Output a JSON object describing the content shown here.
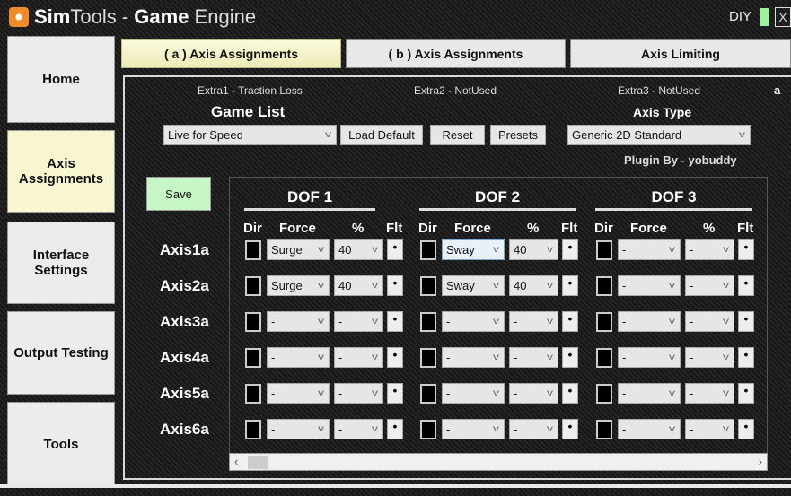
{
  "window": {
    "title_app": "Sim",
    "title_app2": "Tools",
    "title_sep": " - ",
    "title_bold": "Game",
    "title_rest": " Engine",
    "diy": "DIY",
    "close": "X"
  },
  "sidebar": {
    "items": [
      {
        "label": "Home"
      },
      {
        "label": "Axis Assignments",
        "active": true
      },
      {
        "label": "Interface Settings"
      },
      {
        "label": "Output Testing"
      },
      {
        "label": "Tools"
      }
    ]
  },
  "tabs": [
    {
      "label": "( a ) Axis Assignments",
      "active": true
    },
    {
      "label": "( b ) Axis Assignments"
    },
    {
      "label": "Axis Limiting"
    }
  ],
  "panel": {
    "extra1": "Extra1 - Traction Loss",
    "extra2": "Extra2 - NotUsed",
    "extra3": "Extra3 - NotUsed",
    "corner": "a",
    "game_list_label": "Game List",
    "game_selected": "Live for Speed",
    "load_default": "Load Default",
    "reset": "Reset",
    "presets": "Presets",
    "axis_type_label": "Axis Type",
    "axis_type_selected": "Generic 2D Standard",
    "plugin_by": "Plugin By - yobuddy",
    "save": "Save"
  },
  "grid": {
    "dofs": [
      "DOF 1",
      "DOF 2",
      "DOF 3"
    ],
    "columns": {
      "dir": "Dir",
      "force": "Force",
      "percent": "%",
      "flt": "Flt"
    },
    "flt_glyph": "•",
    "rows": [
      {
        "axis": "Axis1a",
        "cells": [
          {
            "force": "Surge",
            "percent": "40"
          },
          {
            "force": "Sway",
            "percent": "40",
            "focused": true
          },
          {
            "force": "-",
            "percent": "-"
          }
        ]
      },
      {
        "axis": "Axis2a",
        "cells": [
          {
            "force": "Surge",
            "percent": "40"
          },
          {
            "force": "Sway",
            "percent": "40"
          },
          {
            "force": "-",
            "percent": "-"
          }
        ]
      },
      {
        "axis": "Axis3a",
        "cells": [
          {
            "force": "-",
            "percent": "-"
          },
          {
            "force": "-",
            "percent": "-"
          },
          {
            "force": "-",
            "percent": "-"
          }
        ]
      },
      {
        "axis": "Axis4a",
        "cells": [
          {
            "force": "-",
            "percent": "-"
          },
          {
            "force": "-",
            "percent": "-"
          },
          {
            "force": "-",
            "percent": "-"
          }
        ]
      },
      {
        "axis": "Axis5a",
        "cells": [
          {
            "force": "-",
            "percent": "-"
          },
          {
            "force": "-",
            "percent": "-"
          },
          {
            "force": "-",
            "percent": "-"
          }
        ]
      },
      {
        "axis": "Axis6a",
        "cells": [
          {
            "force": "-",
            "percent": "-"
          },
          {
            "force": "-",
            "percent": "-"
          },
          {
            "force": "-",
            "percent": "-"
          }
        ]
      }
    ]
  },
  "colors": {
    "active_tab": "#f7f6d0",
    "save": "#c6f5c6",
    "diy_indicator": "#9ef09e"
  }
}
